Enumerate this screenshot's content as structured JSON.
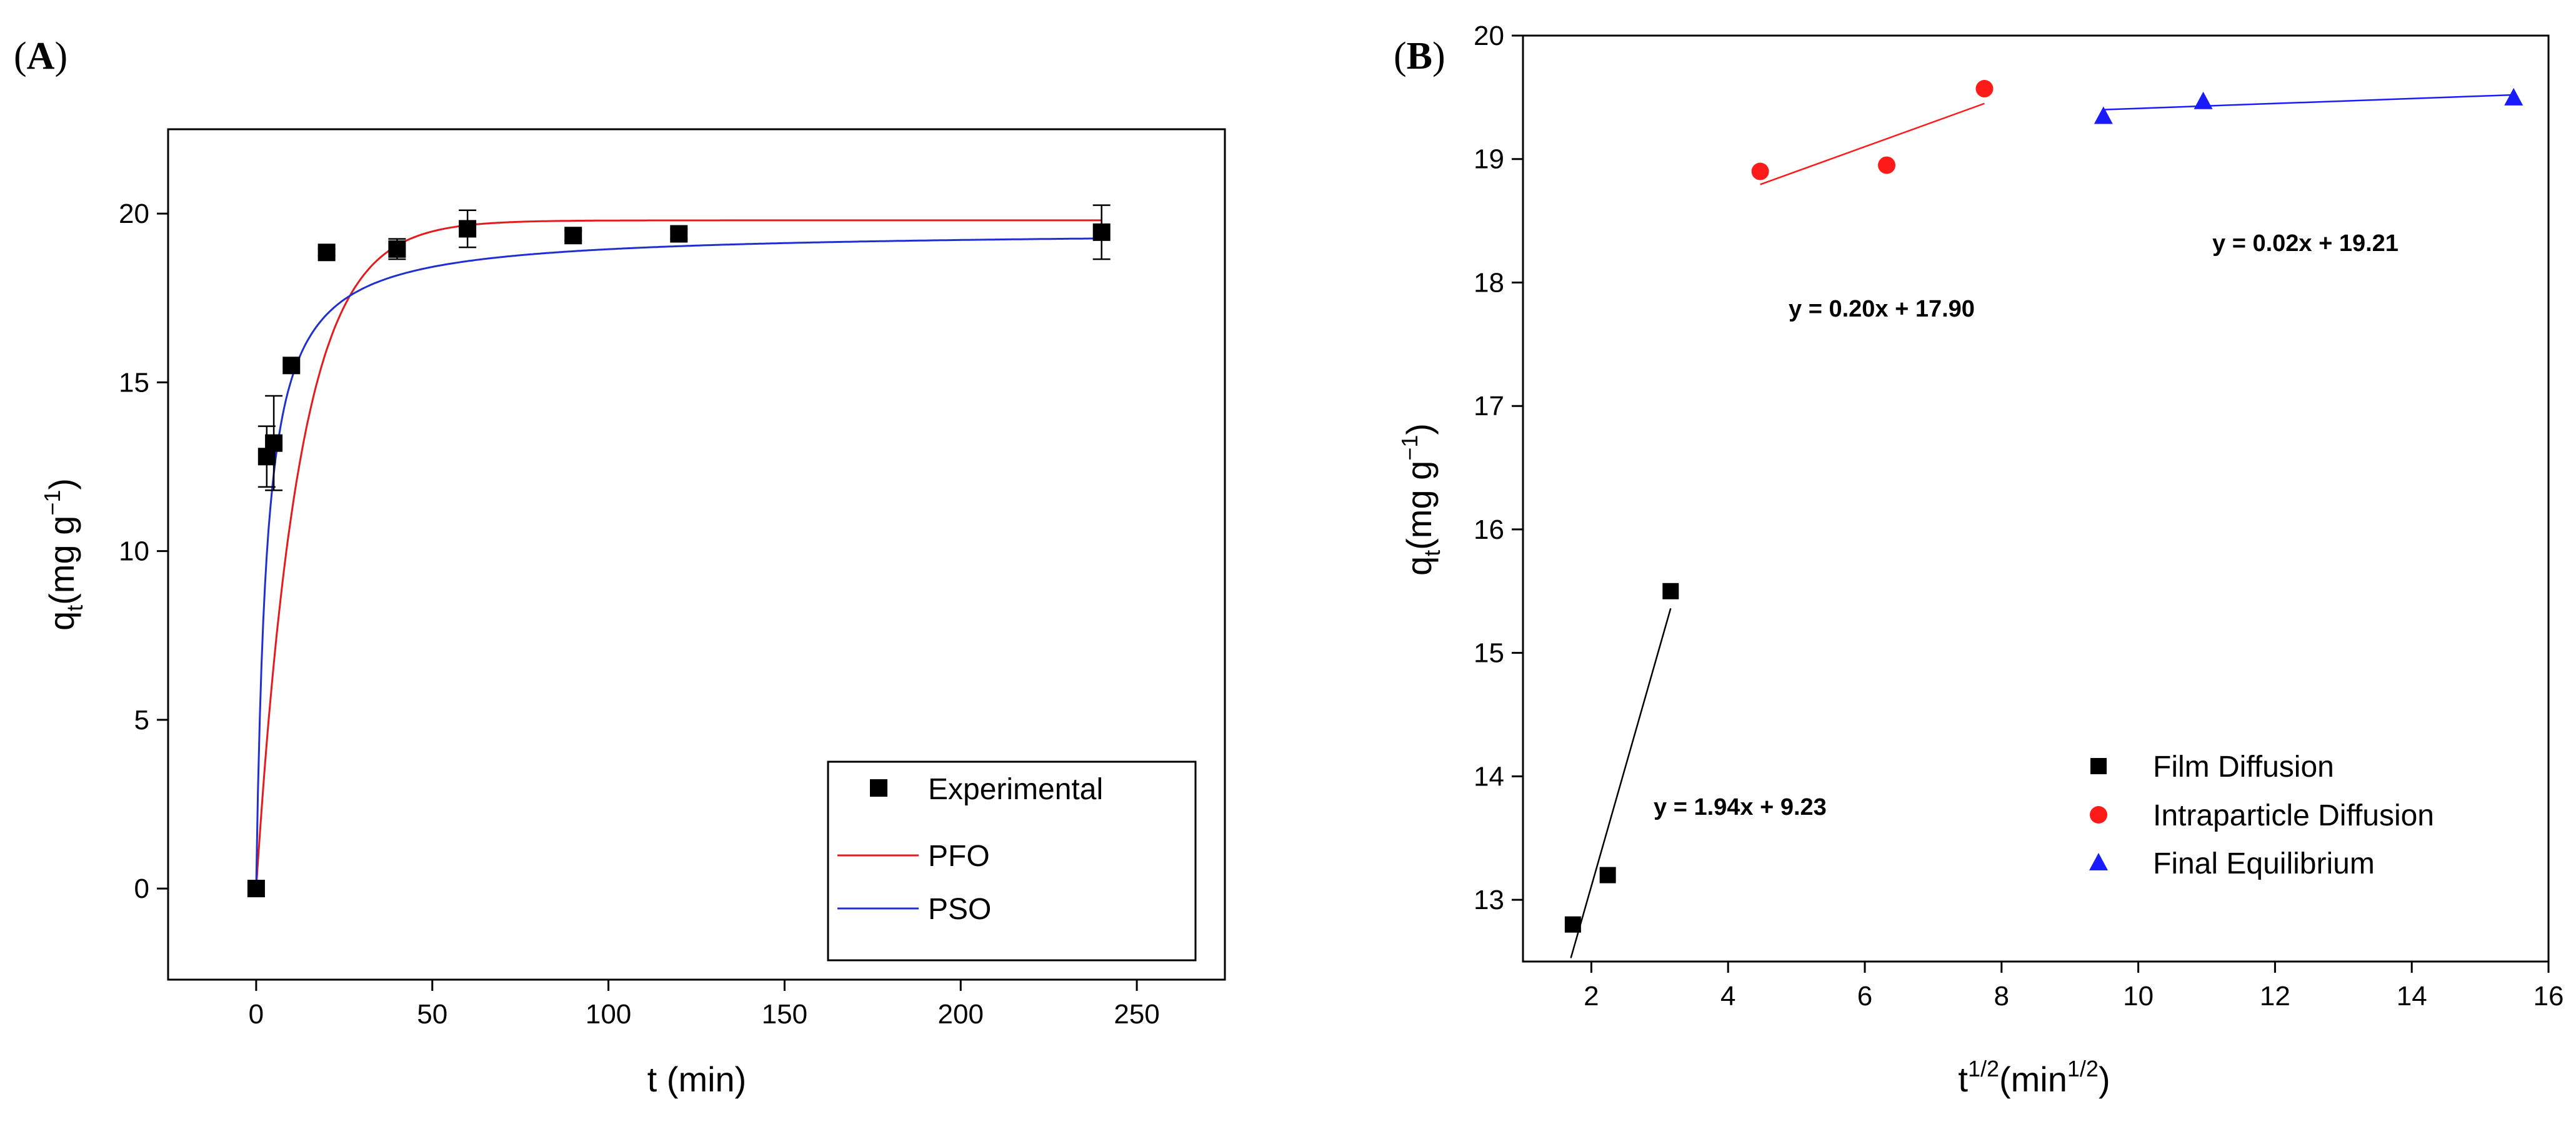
{
  "chart_data": [
    {
      "panel": "A",
      "type": "line",
      "xlabel": "t (min)",
      "ylabel": {
        "base": "q",
        "sub": "t",
        "rest": "(mg g",
        "sup": "−1",
        "close": ")"
      },
      "xlim": [
        -25,
        275
      ],
      "ylim": [
        -2.7,
        22.5
      ],
      "xticks": [
        0,
        50,
        100,
        150,
        200,
        250
      ],
      "yticks": [
        0,
        5,
        10,
        15,
        20
      ],
      "grid": false,
      "legend_position": "bottom-right",
      "legend": {
        "experimental": "Experimental",
        "pfo": "PFO",
        "pso": "PSO"
      },
      "experimental": {
        "x": [
          0,
          3,
          5,
          10,
          20,
          40,
          60,
          90,
          120,
          240
        ],
        "y": [
          0,
          12.8,
          13.2,
          15.5,
          18.85,
          18.95,
          19.55,
          19.35,
          19.4,
          19.45
        ],
        "err": [
          0,
          0.9,
          1.4,
          0,
          0.1,
          0.3,
          0.55,
          0.15,
          0.15,
          0.8
        ]
      },
      "models": {
        "pfo": {
          "qe": 19.8,
          "k": 0.082,
          "color": "#e41a1c"
        },
        "pso": {
          "qe": 19.5,
          "k": 0.0175,
          "color": "#1f2fd0"
        }
      }
    },
    {
      "panel": "B",
      "type": "scatter",
      "xlabel": {
        "base": "t",
        "sup": "1/2",
        "rest": "(min",
        "sup2": "1/2",
        "close": ")"
      },
      "ylabel": {
        "base": "q",
        "sub": "t",
        "rest": "(mg g",
        "sup": "−1",
        "close": ")"
      },
      "xlim": [
        1,
        16
      ],
      "ylim": [
        12.5,
        20
      ],
      "xticks": [
        2,
        4,
        6,
        8,
        10,
        12,
        14,
        16
      ],
      "yticks": [
        13,
        14,
        15,
        16,
        17,
        18,
        19,
        20
      ],
      "grid": false,
      "legend_position": "bottom-right",
      "series": [
        {
          "name": "Film Diffusion",
          "marker": "square",
          "color": "#000000",
          "x": [
            1.73,
            2.24,
            3.16
          ],
          "y": [
            12.8,
            13.2,
            15.5
          ],
          "fit": {
            "slope": 1.94,
            "intercept": 9.23,
            "x_range": [
              1.73,
              3.16
            ],
            "label": "y = 1.94x + 9.23"
          }
        },
        {
          "name": "Intraparticle Diffusion",
          "marker": "circle",
          "color": "#ff1a1a",
          "x": [
            4.47,
            6.32,
            7.75
          ],
          "y": [
            18.9,
            18.95,
            19.57
          ],
          "fit": {
            "slope": 0.2,
            "intercept": 17.9,
            "x_range": [
              4.47,
              7.75
            ],
            "label": "y = 0.20x + 17.90"
          }
        },
        {
          "name": "Final Equilibrium",
          "marker": "triangle",
          "color": "#1a1aff",
          "x": [
            9.49,
            10.95,
            15.49
          ],
          "y": [
            19.35,
            19.47,
            19.5
          ],
          "fit": {
            "slope": 0.02,
            "intercept": 19.21,
            "x_range": [
              9.49,
              15.49
            ],
            "label": "y = 0.02x + 19.21"
          }
        }
      ]
    }
  ]
}
